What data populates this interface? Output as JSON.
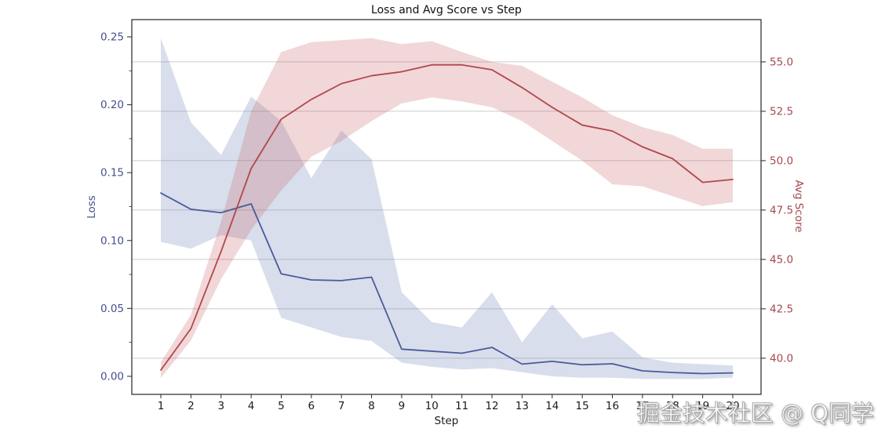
{
  "watermark": {
    "text": "掘金技术社区 @ Q同学"
  },
  "chart_data": {
    "type": "line",
    "title": "Loss and Avg Score vs Step",
    "xlabel": "Step",
    "ylabel_left": "Loss",
    "ylabel_right": "Avg Score",
    "x": [
      1,
      2,
      3,
      4,
      5,
      6,
      7,
      8,
      9,
      10,
      11,
      12,
      13,
      14,
      15,
      16,
      17,
      18,
      19,
      20
    ],
    "x_tick_labels": [
      "1",
      "2",
      "3",
      "4",
      "5",
      "6",
      "7",
      "8",
      "9",
      "10",
      "11",
      "12",
      "13",
      "14",
      "15",
      "16",
      "17",
      "18",
      "19",
      "20"
    ],
    "left_axis": {
      "ticks": [
        0.0,
        0.05,
        0.1,
        0.15,
        0.2,
        0.25
      ],
      "tick_labels": [
        "0.00",
        "0.05",
        "0.10",
        "0.15",
        "0.20",
        "0.25"
      ],
      "minor_ticks": [
        0.025,
        0.075,
        0.125,
        0.175,
        0.225
      ],
      "range": [
        -0.0133,
        0.2627
      ],
      "color": "#474f8b"
    },
    "right_axis": {
      "ticks": [
        40.0,
        42.5,
        45.0,
        47.5,
        50.0,
        52.5,
        55.0
      ],
      "tick_labels": [
        "40.0",
        "42.5",
        "45.0",
        "47.5",
        "50.0",
        "52.5",
        "55.0"
      ],
      "range": [
        38.17,
        57.14
      ],
      "color": "#a5494e"
    },
    "grid": {
      "on": true,
      "axis": "right",
      "color": "#cccccc"
    },
    "legend": {
      "shown": false
    },
    "series": [
      {
        "name": "loss",
        "axis": "left",
        "color": "#4a5b9b",
        "band_color": "#7288b8",
        "band_opacity": 0.28,
        "values": [
          0.135,
          0.123,
          0.1205,
          0.127,
          0.0755,
          0.071,
          0.0705,
          0.073,
          0.02,
          0.0185,
          0.017,
          0.0213,
          0.009,
          0.011,
          0.0085,
          0.0092,
          0.004,
          0.0028,
          0.002,
          0.0025
        ],
        "band_upper": [
          0.249,
          0.187,
          0.163,
          0.206,
          0.188,
          0.146,
          0.181,
          0.16,
          0.062,
          0.04,
          0.036,
          0.062,
          0.025,
          0.053,
          0.028,
          0.033,
          0.014,
          0.01,
          0.009,
          0.008
        ],
        "band_lower": [
          0.099,
          0.094,
          0.104,
          0.1,
          0.043,
          0.036,
          0.029,
          0.026,
          0.01,
          0.007,
          0.005,
          0.006,
          0.003,
          0.0,
          -0.001,
          -0.001,
          -0.002,
          -0.002,
          -0.002,
          -0.001
        ]
      },
      {
        "name": "avg_score",
        "axis": "right",
        "color": "#b1474d",
        "band_color": "#c4585c",
        "band_opacity": 0.24,
        "values": [
          39.4,
          41.5,
          45.4,
          49.6,
          52.1,
          53.1,
          53.9,
          54.3,
          54.5,
          54.85,
          54.85,
          54.6,
          53.7,
          52.7,
          51.8,
          51.5,
          50.7,
          50.1,
          48.9,
          49.05
        ],
        "band_upper": [
          39.8,
          42.2,
          46.9,
          52.5,
          55.5,
          56.0,
          56.1,
          56.2,
          55.9,
          56.05,
          55.5,
          55.0,
          54.8,
          54.0,
          53.2,
          52.3,
          51.7,
          51.3,
          50.6,
          50.6
        ],
        "band_lower": [
          39.0,
          40.9,
          44.0,
          46.5,
          48.5,
          50.2,
          51.0,
          52.0,
          52.9,
          53.2,
          53.0,
          52.7,
          52.0,
          51.0,
          50.0,
          48.8,
          48.7,
          48.2,
          47.7,
          47.9
        ]
      }
    ]
  }
}
